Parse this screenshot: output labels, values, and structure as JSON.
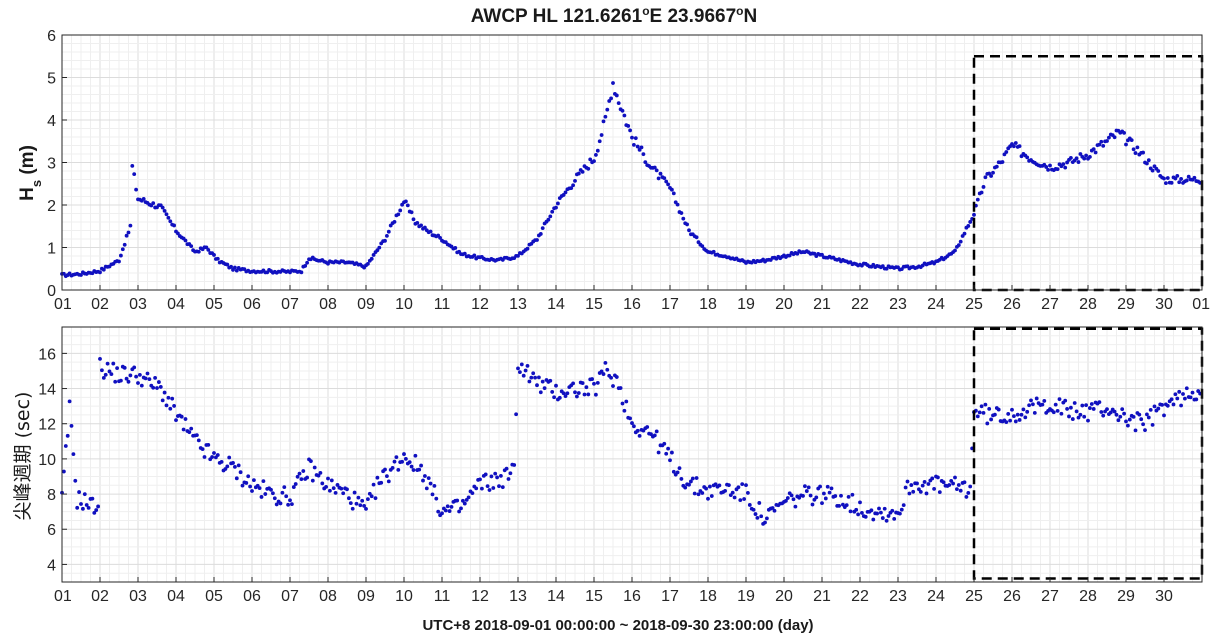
{
  "figure": {
    "title_parts": [
      "AWCP  HL  121.6261",
      "o",
      "E  23.9667",
      "o",
      "N"
    ],
    "xlabel": "UTC+8 2018-09-01 00:00:00 ~ 2018-09-30 23:00:00 (day)",
    "colors": {
      "marker": "#1010c0",
      "grid_major": "#dcdcdc",
      "grid_minor": "#efefef",
      "axes": "#262626",
      "highlight": "#000000"
    }
  },
  "chart_data": [
    {
      "type": "scatter",
      "ylabel_main": "H",
      "ylabel_sub": "s",
      "ylabel_unit": " (m)",
      "x_unit": "day of September 2018",
      "xlim": [
        1,
        31
      ],
      "ylim": [
        0,
        6
      ],
      "yticks": [
        0,
        1,
        2,
        3,
        4,
        5,
        6
      ],
      "xtick_labels": [
        "01",
        "02",
        "03",
        "04",
        "05",
        "06",
        "07",
        "08",
        "09",
        "10",
        "11",
        "12",
        "13",
        "14",
        "15",
        "16",
        "17",
        "18",
        "19",
        "20",
        "21",
        "22",
        "23",
        "24",
        "25",
        "26",
        "27",
        "28",
        "29",
        "30",
        "01"
      ],
      "grid": true,
      "minor_grid": true,
      "highlight_box": {
        "x": [
          25,
          31
        ],
        "y": [
          0,
          5.5
        ],
        "style": "dashed"
      },
      "anchors_x": [
        1,
        1.5,
        2,
        2.5,
        2.8,
        2.85,
        3,
        3.3,
        3.6,
        4,
        4.5,
        4.8,
        5.1,
        5.5,
        6,
        7,
        7.3,
        7.5,
        8,
        8.5,
        9,
        9.5,
        10,
        10.3,
        10.6,
        11,
        11.5,
        12,
        12.5,
        13,
        13.5,
        14,
        14.5,
        15,
        15.3,
        15.5,
        15.6,
        16,
        16.5,
        17,
        17.5,
        18,
        18.5,
        19,
        19.5,
        20,
        20.5,
        21,
        21.5,
        22,
        22.5,
        23,
        23.5,
        24,
        24.5,
        25,
        25.3,
        25.7,
        26,
        26.5,
        27,
        27.5,
        28,
        28.5,
        28.8,
        29.3,
        29.7,
        30,
        30.5,
        31
      ],
      "anchors_y": [
        0.35,
        0.38,
        0.45,
        0.7,
        1.5,
        2.9,
        2.15,
        2.05,
        1.95,
        1.4,
        0.9,
        1.0,
        0.7,
        0.5,
        0.45,
        0.43,
        0.45,
        0.75,
        0.65,
        0.65,
        0.55,
        1.2,
        2.1,
        1.6,
        1.4,
        1.2,
        0.85,
        0.75,
        0.7,
        0.8,
        1.2,
        2.0,
        2.6,
        3.1,
        4.0,
        4.9,
        4.6,
        3.6,
        2.9,
        2.4,
        1.4,
        0.9,
        0.8,
        0.65,
        0.7,
        0.8,
        0.9,
        0.8,
        0.7,
        0.6,
        0.55,
        0.5,
        0.55,
        0.65,
        0.9,
        1.8,
        2.6,
        3.0,
        3.4,
        3.1,
        2.9,
        3.0,
        3.2,
        3.5,
        3.7,
        3.3,
        2.9,
        2.6,
        2.6,
        2.6
      ],
      "jitter": 0.12
    },
    {
      "type": "scatter",
      "ylabel": "尖峰週期 (sec)",
      "x_unit": "day of September 2018",
      "xlim": [
        1,
        31
      ],
      "ylim": [
        3,
        17.5
      ],
      "yticks": [
        4,
        6,
        8,
        10,
        12,
        14,
        16
      ],
      "xtick_labels": [
        "01",
        "02",
        "03",
        "04",
        "05",
        "06",
        "07",
        "08",
        "09",
        "10",
        "11",
        "12",
        "13",
        "14",
        "15",
        "16",
        "17",
        "18",
        "19",
        "20",
        "21",
        "22",
        "23",
        "24",
        "25",
        "26",
        "27",
        "28",
        "29",
        "30"
      ],
      "grid": true,
      "minor_grid": true,
      "highlight_box": {
        "x": [
          25,
          31
        ],
        "y": [
          3.2,
          17.4
        ],
        "style": "dashed"
      },
      "anchors_x": [
        1,
        1.2,
        1.4,
        1.6,
        1.8,
        1.95,
        2,
        2.5,
        3,
        3.3,
        3.6,
        4,
        4.5,
        5,
        5.5,
        6,
        6.5,
        7,
        7.5,
        8,
        8.5,
        9,
        9.3,
        9.7,
        10,
        10.5,
        11,
        11.5,
        12,
        12.5,
        12.9,
        13,
        13.5,
        14,
        14.5,
        15,
        15.3,
        15.6,
        16,
        16.5,
        17,
        17.5,
        18,
        18.5,
        19,
        19.5,
        20,
        20.5,
        21,
        21.5,
        22,
        22.5,
        23,
        23.3,
        23.6,
        24,
        24.5,
        24.9,
        25,
        25.5,
        26,
        26.5,
        27,
        27.5,
        28,
        28.5,
        29,
        29.5,
        30,
        30.5,
        31
      ],
      "anchors_y": [
        7.7,
        12.8,
        7.7,
        7.6,
        7.3,
        7.5,
        15.2,
        14.8,
        14.8,
        14.3,
        14.0,
        12.5,
        11.0,
        10.0,
        9.5,
        8.5,
        8.0,
        7.8,
        9.5,
        8.5,
        8.0,
        7.0,
        8.5,
        9.5,
        10.2,
        9.3,
        7.0,
        7.2,
        8.6,
        8.8,
        9.3,
        15.5,
        14.3,
        13.8,
        14.0,
        14.0,
        15.0,
        14.5,
        12.0,
        11.5,
        10.0,
        8.5,
        8.2,
        8.3,
        8.0,
        6.5,
        7.5,
        7.9,
        8.0,
        7.8,
        7.2,
        7.0,
        6.9,
        8.5,
        8.6,
        8.5,
        8.4,
        8.3,
        12.8,
        12.4,
        12.6,
        12.8,
        13.2,
        12.7,
        12.7,
        12.9,
        12.3,
        12.0,
        13.0,
        13.5,
        14.0
      ],
      "jitter": 0.55
    }
  ]
}
